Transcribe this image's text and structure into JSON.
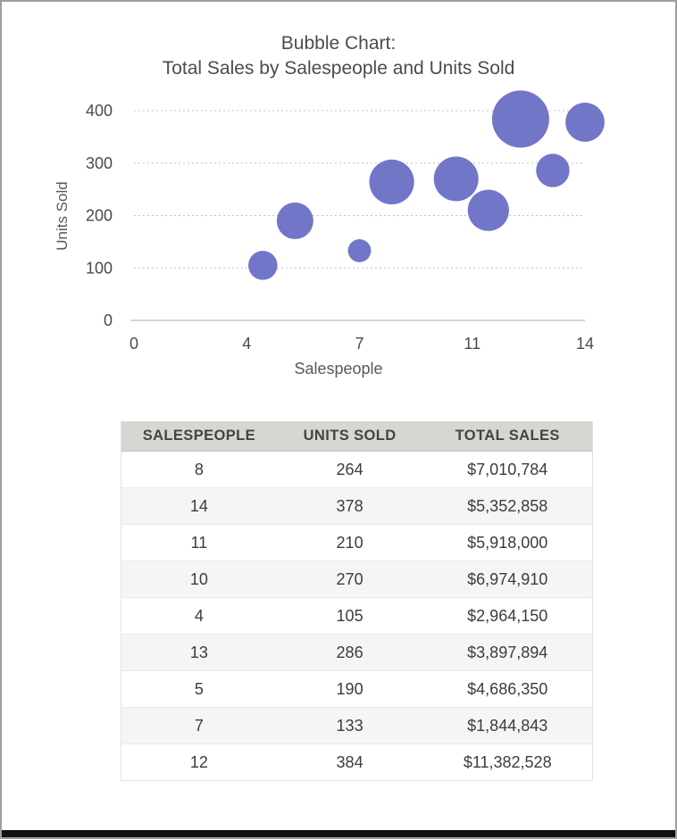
{
  "chart": {
    "title_line1": "Bubble Chart:",
    "title_line2": "Total Sales by Salespeople and Units Sold",
    "xlabel": "Salespeople",
    "ylabel": "Units Sold"
  },
  "chart_data": {
    "type": "scatter",
    "subtype": "bubble",
    "title": "Bubble Chart: Total Sales by Salespeople and Units Sold",
    "xlabel": "Salespeople",
    "ylabel": "Units Sold",
    "xlim": [
      0,
      14
    ],
    "ylim": [
      0,
      400
    ],
    "x_tick_values": [
      0,
      3.5,
      7,
      10.5,
      14
    ],
    "x_tick_labels": [
      "0",
      "4",
      "7",
      "11",
      "14"
    ],
    "y_tick_values": [
      0,
      100,
      200,
      300,
      400
    ],
    "y_tick_labels": [
      "0",
      "100",
      "200",
      "300",
      "400"
    ],
    "grid": "horizontal-dotted",
    "legend": "none",
    "bubble_size_by": "total_sales",
    "points": [
      {
        "salespeople": 8,
        "units_sold": 264,
        "total_sales": 7010784
      },
      {
        "salespeople": 14,
        "units_sold": 378,
        "total_sales": 5352858
      },
      {
        "salespeople": 11,
        "units_sold": 210,
        "total_sales": 5918000
      },
      {
        "salespeople": 10,
        "units_sold": 270,
        "total_sales": 6974910
      },
      {
        "salespeople": 4,
        "units_sold": 105,
        "total_sales": 2964150
      },
      {
        "salespeople": 13,
        "units_sold": 286,
        "total_sales": 3897894
      },
      {
        "salespeople": 5,
        "units_sold": 190,
        "total_sales": 4686350
      },
      {
        "salespeople": 7,
        "units_sold": 133,
        "total_sales": 1844843
      },
      {
        "salespeople": 12,
        "units_sold": 384,
        "total_sales": 11382528
      }
    ]
  },
  "table": {
    "headers": [
      "SALESPEOPLE",
      "UNITS SOLD",
      "TOTAL SALES"
    ],
    "rows": [
      [
        "8",
        "264",
        "$7,010,784"
      ],
      [
        "14",
        "378",
        "$5,352,858"
      ],
      [
        "11",
        "210",
        "$5,918,000"
      ],
      [
        "10",
        "270",
        "$6,974,910"
      ],
      [
        "4",
        "105",
        "$2,964,150"
      ],
      [
        "13",
        "286",
        "$3,897,894"
      ],
      [
        "5",
        "190",
        "$4,686,350"
      ],
      [
        "7",
        "133",
        "$1,844,843"
      ],
      [
        "12",
        "384",
        "$11,382,528"
      ]
    ]
  },
  "colors": {
    "bubble": "#7276c8",
    "title_text": "#4c4c4c",
    "axis_text": "#4a4a4a",
    "axis_title_text": "#585858",
    "gridline": "#c3c3c3",
    "axis_line": "#a8a8a8",
    "table_header_bg": "#d7d6d1",
    "table_header_text": "#45443f",
    "table_row_alt_bg": "#f5f5f3",
    "table_border": "#e3e3e1",
    "frame_border": "#9e9e9e",
    "bottom_bar": "#111111"
  }
}
